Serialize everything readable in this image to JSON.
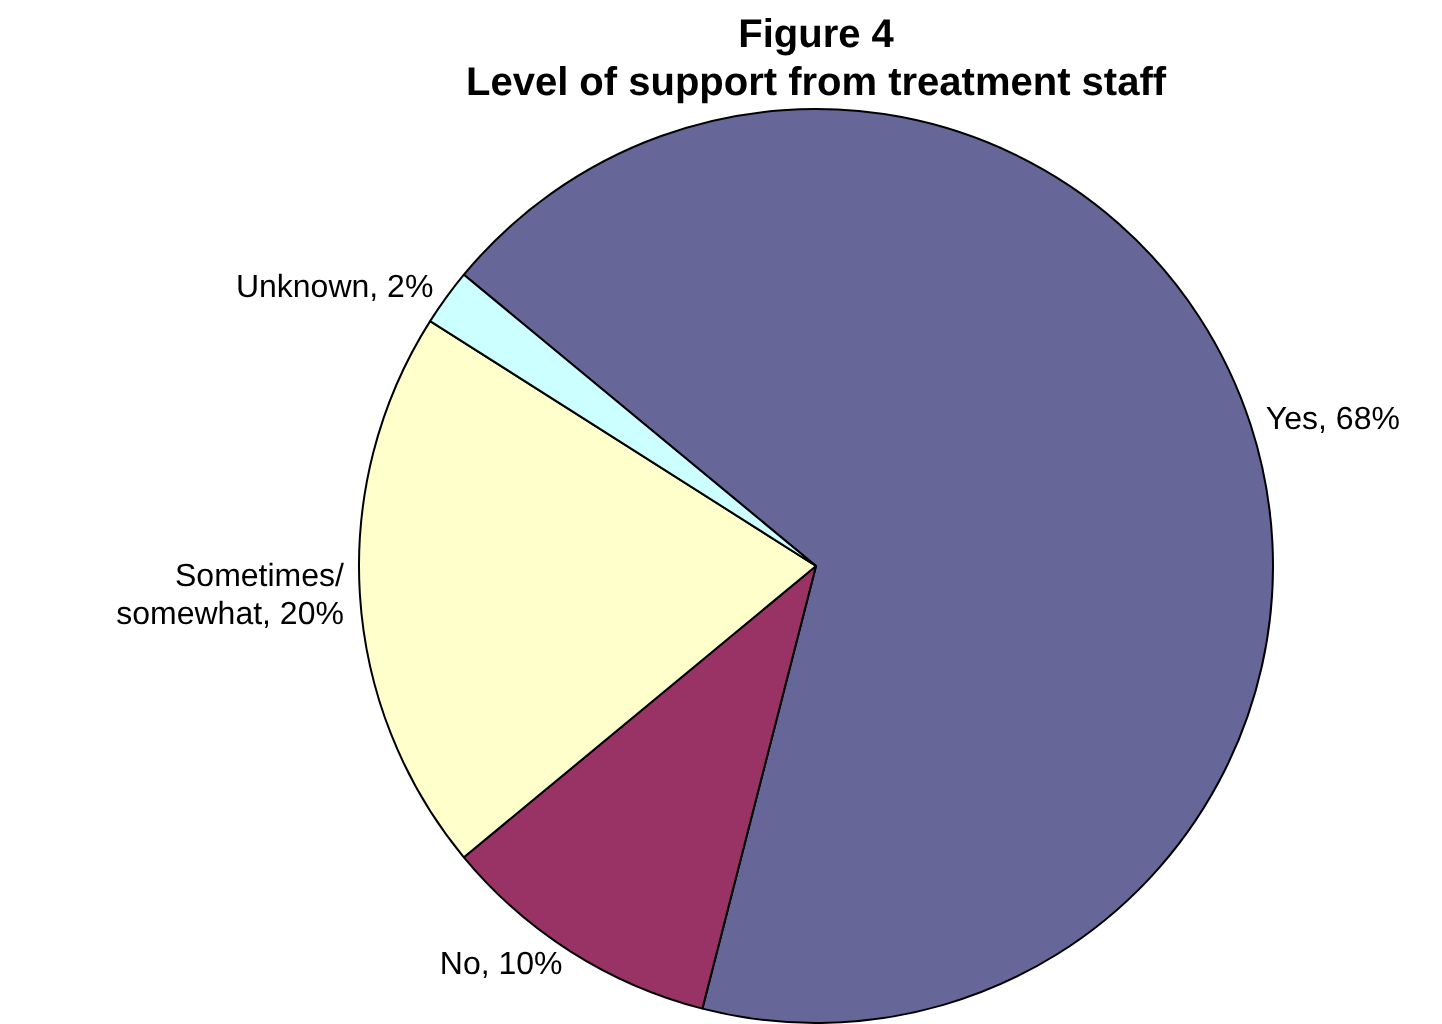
{
  "chart_data": {
    "type": "pie",
    "title": "Figure 4",
    "subtitle": "Level of support from treatment staff",
    "categories": [
      "Yes",
      "No",
      "Sometimes/ somewhat",
      "Unknown"
    ],
    "values": [
      68,
      10,
      20,
      2
    ],
    "value_labels": [
      "68%",
      "10%",
      "20%",
      "2%"
    ],
    "colors": [
      "#666699",
      "#993366",
      "#ffffcc",
      "#ccffff"
    ],
    "legend": false
  }
}
